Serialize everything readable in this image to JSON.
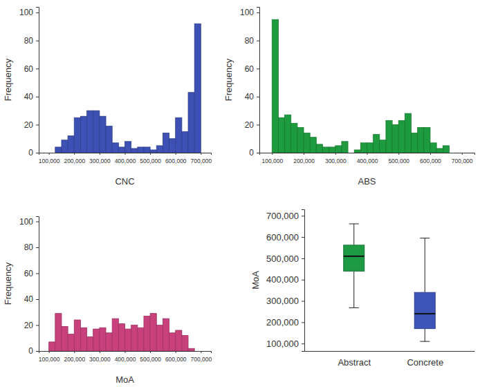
{
  "chart_data": [
    {
      "type": "histogram",
      "x_label": "CNC",
      "y_label": "Frequency",
      "color": "#3d51b4",
      "bins": [
        125000,
        150000,
        175000,
        200000,
        225000,
        250000,
        275000,
        300000,
        325000,
        350000,
        375000,
        400000,
        425000,
        450000,
        475000,
        500000,
        525000,
        550000,
        575000,
        600000,
        625000,
        650000,
        675000,
        700000
      ],
      "counts": [
        4,
        9,
        12,
        25,
        26,
        30,
        30,
        26,
        19,
        7,
        4,
        8,
        3,
        4,
        4,
        2,
        5,
        14,
        10,
        25,
        15,
        43,
        92
      ],
      "xlim": [
        60000,
        740000
      ],
      "xticks": [
        {
          "value": 100000,
          "label": "100,000"
        },
        {
          "value": 200000,
          "label": "200,000"
        },
        {
          "value": 300000,
          "label": "300,000"
        },
        {
          "value": 400000,
          "label": "400,000"
        },
        {
          "value": 500000,
          "label": "500,000"
        },
        {
          "value": 600000,
          "label": "600,000"
        },
        {
          "value": 700000,
          "label": "700,000"
        }
      ],
      "ylim": [
        0,
        104
      ],
      "yticks": [
        0,
        20,
        40,
        60,
        80,
        100
      ],
      "grid": false
    },
    {
      "type": "histogram",
      "x_label": "ABS",
      "y_label": "Frequency",
      "color": "#1f9b3f",
      "bins": [
        100000,
        120000,
        140000,
        160000,
        180000,
        200000,
        220000,
        240000,
        260000,
        280000,
        300000,
        320000,
        340000,
        360000,
        380000,
        400000,
        420000,
        440000,
        460000,
        480000,
        500000,
        520000,
        540000,
        560000,
        580000,
        600000,
        620000,
        640000,
        660000
      ],
      "counts": [
        95,
        25,
        27,
        21,
        18,
        14,
        11,
        6,
        4,
        4,
        5,
        8,
        0,
        2,
        7,
        7,
        13,
        9,
        23,
        20,
        23,
        28,
        14,
        18,
        18,
        7,
        3,
        5
      ],
      "xlim": [
        60000,
        740000
      ],
      "xticks": [
        {
          "value": 100000,
          "label": "100,000"
        },
        {
          "value": 200000,
          "label": "200,000"
        },
        {
          "value": 300000,
          "label": "300,000"
        },
        {
          "value": 400000,
          "label": "400,000"
        },
        {
          "value": 500000,
          "label": "500,000"
        },
        {
          "value": 600000,
          "label": "600,000"
        },
        {
          "value": 700000,
          "label": "700,000"
        }
      ],
      "ylim": [
        0,
        104
      ],
      "yticks": [
        0,
        20,
        40,
        60,
        80,
        100
      ],
      "grid": false
    },
    {
      "type": "histogram",
      "x_label": "MoA",
      "y_label": "Frequency",
      "color": "#c8417c",
      "bins": [
        100000,
        125000,
        150000,
        175000,
        200000,
        225000,
        250000,
        275000,
        300000,
        325000,
        350000,
        375000,
        400000,
        425000,
        450000,
        475000,
        500000,
        525000,
        550000,
        575000,
        600000,
        625000,
        650000,
        675000
      ],
      "counts": [
        7,
        29,
        19,
        13,
        24,
        18,
        11,
        17,
        18,
        14,
        25,
        21,
        17,
        20,
        18,
        27,
        29,
        20,
        25,
        14,
        16,
        12,
        2
      ],
      "xlim": [
        60000,
        740000
      ],
      "xticks": [
        {
          "value": 100000,
          "label": "100,000"
        },
        {
          "value": 200000,
          "label": "200,000"
        },
        {
          "value": 300000,
          "label": "300,000"
        },
        {
          "value": 400000,
          "label": "400,000"
        },
        {
          "value": 500000,
          "label": "500,000"
        },
        {
          "value": 600000,
          "label": "600,000"
        },
        {
          "value": 700000,
          "label": "700,000"
        }
      ],
      "ylim": [
        0,
        104
      ],
      "yticks": [
        0,
        20,
        40,
        60,
        80,
        100
      ],
      "grid": false
    },
    {
      "type": "box",
      "y_label": "MoA",
      "categories": [
        "Abstract",
        "Concrete"
      ],
      "colors": [
        "#1f9b46",
        "#3d55b8"
      ],
      "boxes": [
        {
          "min": 268000,
          "q1": 440000,
          "median": 510000,
          "q3": 562000,
          "max": 662000
        },
        {
          "min": 110000,
          "q1": 170000,
          "median": 240000,
          "q3": 340000,
          "max": 595000
        }
      ],
      "ylim": [
        65000,
        730000
      ],
      "yticks": [
        {
          "value": 100000,
          "label": "100,000"
        },
        {
          "value": 200000,
          "label": "200,000"
        },
        {
          "value": 300000,
          "label": "300,000"
        },
        {
          "value": 400000,
          "label": "400,000"
        },
        {
          "value": 500000,
          "label": "500,000"
        },
        {
          "value": 600000,
          "label": "600,000"
        },
        {
          "value": 700000,
          "label": "700,000"
        }
      ],
      "grid": false
    }
  ]
}
